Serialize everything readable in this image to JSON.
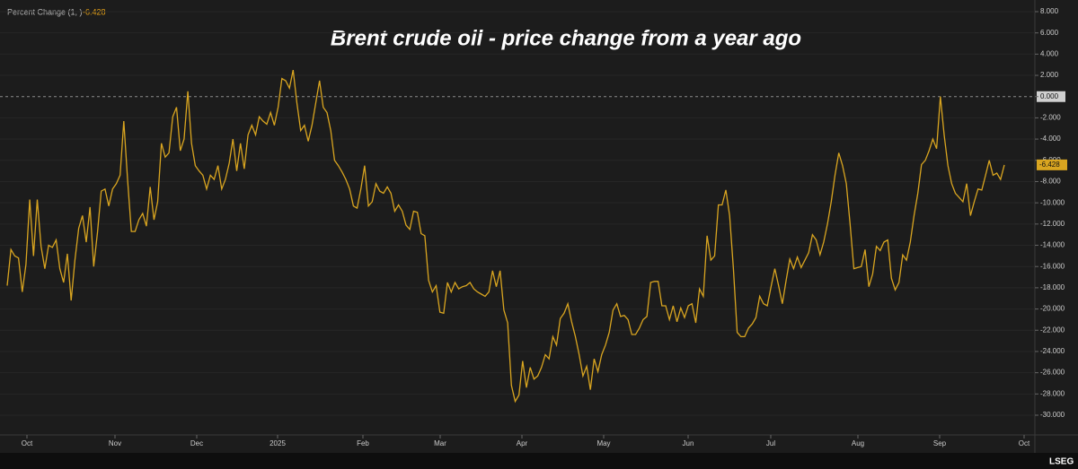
{
  "chart_data": {
    "type": "line",
    "title": "Brent crude oil - price change from a year ago",
    "legend_label": "Percent Change (1, )",
    "brand": "LSEG",
    "grid": true,
    "dashed_zero_line": true,
    "xtick_labels": [
      "Oct",
      "Nov",
      "Dec",
      "2025",
      "Feb",
      "Mar",
      "Apr",
      "May",
      "Jun",
      "Jul",
      "Aug",
      "Sep",
      "Oct"
    ],
    "ylim": [
      -30,
      8
    ],
    "yticks": [
      {
        "value": 8,
        "label": "8.000"
      },
      {
        "value": 6,
        "label": "6.000"
      },
      {
        "value": 4,
        "label": "4.000"
      },
      {
        "value": 2,
        "label": "2.000"
      },
      {
        "value": 0,
        "label": "0.000"
      },
      {
        "value": -2,
        "label": "-2.000"
      },
      {
        "value": -4,
        "label": "-4.000"
      },
      {
        "value": -6,
        "label": "-6.000"
      },
      {
        "value": -8,
        "label": "-8.000"
      },
      {
        "value": -10,
        "label": "-10.000"
      },
      {
        "value": -12,
        "label": "-12.000"
      },
      {
        "value": -14,
        "label": "-14.000"
      },
      {
        "value": -16,
        "label": "-16.000"
      },
      {
        "value": -18,
        "label": "-18.000"
      },
      {
        "value": -20,
        "label": "-20.000"
      },
      {
        "value": -22,
        "label": "-22.000"
      },
      {
        "value": -24,
        "label": "-24.000"
      },
      {
        "value": -26,
        "label": "-26.000"
      },
      {
        "value": -28,
        "label": "-28.000"
      },
      {
        "value": -30,
        "label": "-30.000"
      }
    ],
    "series": [
      {
        "name": "Percent Change",
        "color": "#d9a520",
        "values": [
          -17.8,
          -14.4,
          -15,
          -15.2,
          -18.4,
          -15.8,
          -9.7,
          -15,
          -9.7,
          -14.1,
          -16.2,
          -14,
          -14.2,
          -13.5,
          -16.2,
          -17.5,
          -14.8,
          -19.2,
          -15.4,
          -12.4,
          -11.2,
          -13.7,
          -10.4,
          -16,
          -12.8,
          -8.9,
          -8.7,
          -10.3,
          -8.7,
          -8.2,
          -7.4,
          -2.3,
          -7.8,
          -12.7,
          -12.7,
          -11.6,
          -11,
          -12.2,
          -8.5,
          -11.6,
          -9.9,
          -4.4,
          -5.7,
          -5.3,
          -1.9,
          -1,
          -5.1,
          -4,
          0.5,
          -4.4,
          -6.5,
          -7,
          -7.4,
          -8.7,
          -7.4,
          -7.8,
          -6.5,
          -8.7,
          -7.8,
          -6.3,
          -4,
          -7,
          -4.4,
          -6.8,
          -3.6,
          -2.7,
          -3.6,
          -1.9,
          -2.3,
          -2.6,
          -1.5,
          -2.7,
          -1,
          1.7,
          1.5,
          0.8,
          2.5,
          -0.6,
          -3.2,
          -2.7,
          -4.2,
          -2.7,
          -0.6,
          1.5,
          -1,
          -1.5,
          -3.2,
          -6,
          -6.5,
          -7.1,
          -7.8,
          -8.7,
          -10.3,
          -10.5,
          -8.7,
          -6.5,
          -10.3,
          -9.9,
          -8.2,
          -8.9,
          -9.1,
          -8.5,
          -9.1,
          -10.8,
          -10.2,
          -10.8,
          -12.1,
          -12.5,
          -10.8,
          -10.9,
          -12.9,
          -13.1,
          -17.3,
          -18.4,
          -17.8,
          -20.3,
          -20.4,
          -17.5,
          -18.4,
          -17.5,
          -18.1,
          -17.9,
          -17.8,
          -17.5,
          -18.1,
          -18.4,
          -18.6,
          -18.8,
          -18.4,
          -16.4,
          -17.9,
          -16.4,
          -20.1,
          -21.3,
          -27.2,
          -28.7,
          -28.1,
          -24.9,
          -27.4,
          -25.5,
          -26.6,
          -26.3,
          -25.5,
          -24.3,
          -24.7,
          -22.6,
          -23.4,
          -20.9,
          -20.4,
          -19.5,
          -21.2,
          -22.6,
          -24.3,
          -26.3,
          -25.4,
          -27.6,
          -24.7,
          -25.9,
          -24.3,
          -23.4,
          -22.2,
          -20.1,
          -19.5,
          -20.7,
          -20.6,
          -21,
          -22.4,
          -22.4,
          -21.8,
          -21,
          -20.7,
          -17.5,
          -17.4,
          -17.4,
          -19.7,
          -19.7,
          -21,
          -19.7,
          -21.2,
          -19.9,
          -20.8,
          -19.7,
          -19.5,
          -21.3,
          -18.1,
          -18.8,
          -13.1,
          -15.4,
          -15,
          -10.2,
          -10.2,
          -8.8,
          -11.2,
          -16.2,
          -22.2,
          -22.6,
          -22.6,
          -21.8,
          -21.4,
          -20.8,
          -18.8,
          -19.5,
          -19.7,
          -17.9,
          -16.2,
          -17.8,
          -19.5,
          -17.3,
          -15.3,
          -16.2,
          -15.1,
          -16.1,
          -15.4,
          -14.7,
          -13,
          -13.5,
          -14.9,
          -13.7,
          -12,
          -9.9,
          -7.4,
          -5.3,
          -6.5,
          -8.2,
          -12,
          -16.2,
          -16.1,
          -16,
          -14.4,
          -17.9,
          -16.7,
          -14.1,
          -14.5,
          -13.7,
          -13.5,
          -17.1,
          -18.2,
          -17.5,
          -14.9,
          -15.4,
          -13.7,
          -11.2,
          -9.1,
          -6.4,
          -6,
          -5.1,
          -4,
          -4.9,
          0,
          -3.6,
          -6.5,
          -8.2,
          -9.1,
          -9.5,
          -9.9,
          -8.2,
          -11.2,
          -9.9,
          -8.7,
          -8.8,
          -7.4,
          -6,
          -7.4,
          -7.2,
          -7.8,
          -6.428
        ]
      }
    ]
  }
}
